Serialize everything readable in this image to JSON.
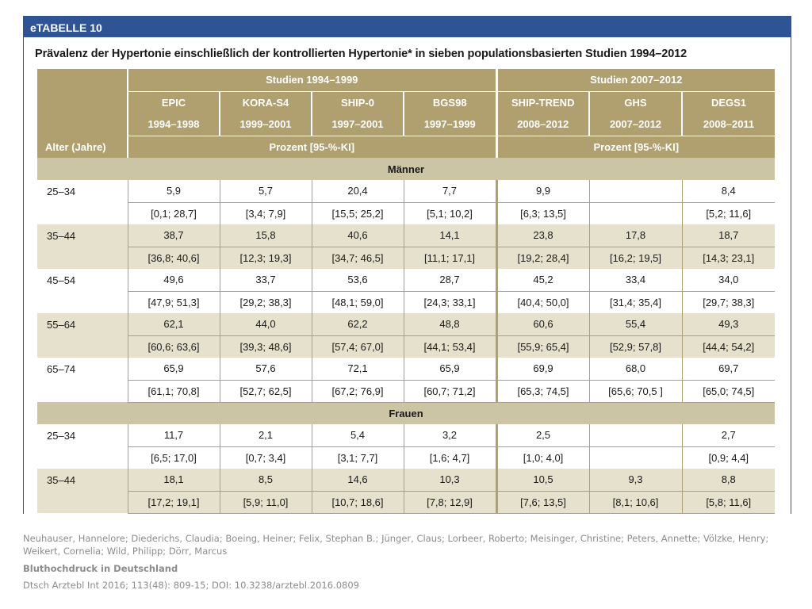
{
  "header_label": "eTABELLE 10",
  "title": "Prävalenz der Hypertonie einschließlich der kontrollierten Hypertonie* in sieben populationsbasierten Studien 1994–2012",
  "header": {
    "age_label": "Alter (Jahre)",
    "groups": [
      {
        "label": "Studien 1994–1999",
        "unit": "Prozent [95-%-KI]"
      },
      {
        "label": "Studien 2007–2012",
        "unit": "Prozent [95-%-KI]"
      }
    ],
    "studies": [
      {
        "name": "EPIC",
        "years": "1994–1998"
      },
      {
        "name": "KORA-S4",
        "years": "1999–2001"
      },
      {
        "name": "SHIP-0",
        "years": "1997–2001"
      },
      {
        "name": "BGS98",
        "years": "1997–1999"
      },
      {
        "name": "SHIP-TREND",
        "years": "2008–2012"
      },
      {
        "name": "GHS",
        "years": "2007–2012"
      },
      {
        "name": "DEGS1",
        "years": "2008–2011"
      }
    ]
  },
  "sections": [
    {
      "label": "Männer",
      "rows": [
        {
          "age": "25–34",
          "values": [
            "5,9",
            "5,7",
            "20,4",
            "7,7",
            "9,9",
            "",
            "8,4"
          ],
          "ci": [
            "[0,1; 28,7]",
            "[3,4; 7,9]",
            "[15,5; 25,2]",
            "[5,1; 10,2]",
            "[6,3; 13,5]",
            "",
            "[5,2; 11,6]"
          ]
        },
        {
          "age": "35–44",
          "values": [
            "38,7",
            "15,8",
            "40,6",
            "14,1",
            "23,8",
            "17,8",
            "18,7"
          ],
          "ci": [
            "[36,8; 40,6]",
            "[12,3; 19,3]",
            "[34,7; 46,5]",
            "[11,1; 17,1]",
            "[19,2; 28,4]",
            "[16,2; 19,5]",
            "[14,3; 23,1]"
          ]
        },
        {
          "age": "45–54",
          "values": [
            "49,6",
            "33,7",
            "53,6",
            "28,7",
            "45,2",
            "33,4",
            "34,0"
          ],
          "ci": [
            "[47,9; 51,3]",
            "[29,2; 38,3]",
            "[48,1; 59,0]",
            "[24,3; 33,1]",
            "[40,4; 50,0]",
            "[31,4; 35,4]",
            "[29,7; 38,3]"
          ]
        },
        {
          "age": "55–64",
          "values": [
            "62,1",
            "44,0",
            "62,2",
            "48,8",
            "60,6",
            "55,4",
            "49,3"
          ],
          "ci": [
            "[60,6; 63,6]",
            "[39,3; 48,6]",
            "[57,4; 67,0]",
            "[44,1; 53,4]",
            "[55,9; 65,4]",
            "[52,9; 57,8]",
            "[44,4; 54,2]"
          ]
        },
        {
          "age": "65–74",
          "values": [
            "65,9",
            "57,6",
            "72,1",
            "65,9",
            "69,9",
            "68,0",
            "69,7"
          ],
          "ci": [
            "[61,1; 70,8]",
            "[52,7; 62,5]",
            "[67,2; 76,9]",
            "[60,7; 71,2]",
            "[65,3; 74,5]",
            "[65,6; 70,5 ]",
            "[65,0; 74,5]"
          ]
        }
      ]
    },
    {
      "label": "Frauen",
      "rows": [
        {
          "age": "25–34",
          "values": [
            "11,7",
            "2,1",
            "5,4",
            "3,2",
            "2,5",
            "",
            "2,7"
          ],
          "ci": [
            "[6,5; 17,0]",
            "[0,7; 3,4]",
            "[3,1; 7,7]",
            "[1,6; 4,7]",
            "[1,0; 4,0]",
            "",
            "[0,9; 4,4]"
          ]
        },
        {
          "age": "35–44",
          "values": [
            "18,1",
            "8,5",
            "14,6",
            "10,3",
            "10,5",
            "9,3",
            "8,8"
          ],
          "ci": [
            "[17,2; 19,1]",
            "[5,9; 11,0]",
            "[10,7; 18,6]",
            "[7,8; 12,9]",
            "[7,6; 13,5]",
            "[8,1; 10,6]",
            "[5,8; 11,6]"
          ]
        }
      ]
    }
  ],
  "citation": {
    "authors": "Neuhauser, Hannelore; Diederichs, Claudia; Boeing, Heiner; Felix, Stephan B.; Jünger, Claus; Lorbeer, Roberto; Meisinger, Christine; Peters, Annette; Völzke, Henry; Weikert, Cornelia; Wild, Philipp; Dörr, Marcus",
    "title": "Bluthochdruck in Deutschland",
    "journal": "Dtsch Arztebl Int 2016; 113(48): 809-15; DOI: 10.3238/arztebl.2016.0809"
  },
  "colors": {
    "header_bar": "#2f5496",
    "table_header": "#b0a070",
    "section_band": "#ccc5a5",
    "row_shade": "#e6e1cc"
  }
}
